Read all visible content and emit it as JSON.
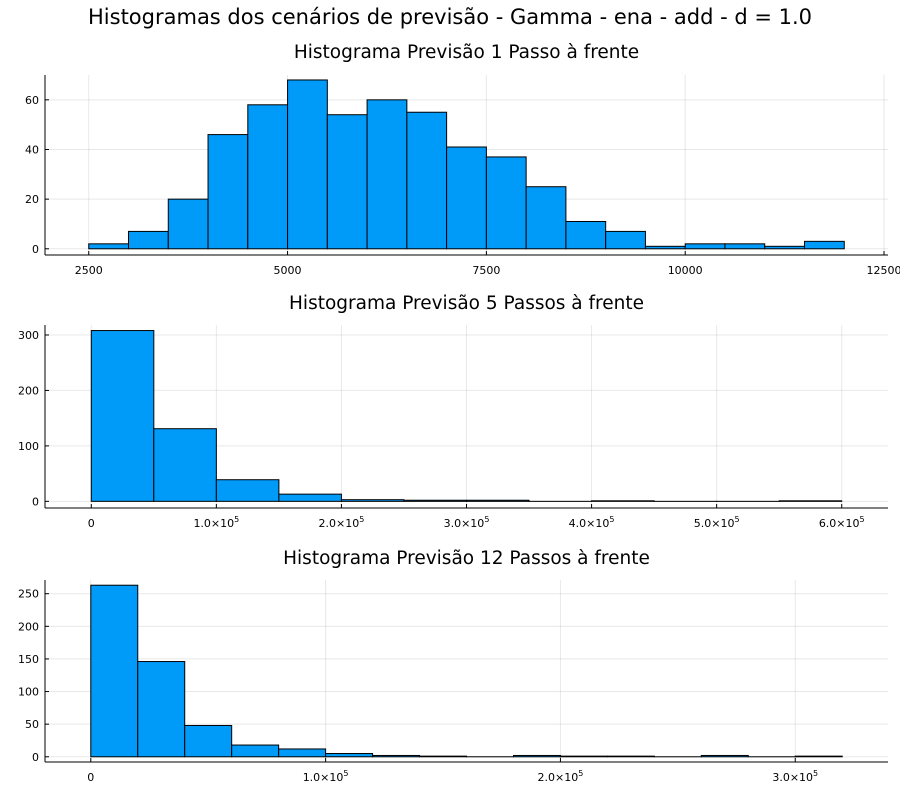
{
  "title": "Histogramas dos cenários de previsão - Gamma - ena - add - d = 1.0",
  "colors": {
    "bar_fill": "#009AF9",
    "bar_stroke": "#000000",
    "grid": "#EDEDED"
  },
  "chart_data": [
    {
      "type": "bar",
      "title": "Histograma Previsão 1 Passo à frente",
      "xlabel": "",
      "ylabel": "",
      "grid": true,
      "legend": "none",
      "bin_edges": [
        2500,
        3000,
        3500,
        4000,
        4500,
        5000,
        5500,
        6000,
        6500,
        7000,
        7500,
        8000,
        8500,
        9000,
        9500,
        10000,
        10500,
        11000,
        11500,
        12000
      ],
      "values": [
        2,
        7,
        20,
        46,
        58,
        68,
        54,
        60,
        55,
        41,
        37,
        25,
        11,
        7,
        1,
        2,
        2,
        1,
        3
      ],
      "xlim": [
        1950,
        12550
      ],
      "ylim": [
        -2.5,
        70
      ],
      "xticks": [
        2500,
        5000,
        7500,
        10000,
        12500
      ],
      "xtick_labels": [
        "2500",
        "5000",
        "7500",
        "10000",
        "12500"
      ],
      "yticks": [
        0,
        20,
        40,
        60
      ],
      "ytick_labels": [
        "0",
        "20",
        "40",
        "60"
      ]
    },
    {
      "type": "bar",
      "title": "Histograma Previsão 5 Passos à frente",
      "xlabel": "",
      "ylabel": "",
      "grid": true,
      "legend": "none",
      "bin_edges": [
        0,
        50000,
        100000,
        150000,
        200000,
        250000,
        300000,
        350000,
        400000,
        450000,
        500000,
        550000,
        600000
      ],
      "values": [
        308,
        131,
        39,
        13,
        3,
        2,
        2,
        0,
        1,
        0,
        0,
        1
      ],
      "xlim": [
        -37000,
        637000
      ],
      "ylim": [
        -12,
        318
      ],
      "xticks": [
        0,
        100000,
        200000,
        300000,
        400000,
        500000,
        600000
      ],
      "xtick_labels": [
        "0",
        "1.0×10",
        "2.0×10",
        "3.0×10",
        "4.0×10",
        "5.0×10",
        "6.0×10"
      ],
      "xtick_exponent": "5",
      "yticks": [
        0,
        100,
        200,
        300
      ],
      "ytick_labels": [
        "0",
        "100",
        "200",
        "300"
      ]
    },
    {
      "type": "bar",
      "title": "Histograma Previsão 12 Passos à frente",
      "xlabel": "",
      "ylabel": "",
      "grid": true,
      "legend": "none",
      "bin_edges": [
        0,
        20000,
        40000,
        60000,
        80000,
        100000,
        120000,
        140000,
        160000,
        180000,
        200000,
        220000,
        240000,
        260000,
        280000,
        300000,
        320000
      ],
      "values": [
        263,
        146,
        48,
        18,
        12,
        5,
        2,
        1,
        0,
        2,
        1,
        1,
        0,
        2,
        0,
        1
      ],
      "xlim": [
        -19500,
        339500
      ],
      "ylim": [
        -8,
        271
      ],
      "xticks": [
        0,
        100000,
        200000,
        300000
      ],
      "xtick_labels": [
        "0",
        "1.0×10",
        "2.0×10",
        "3.0×10"
      ],
      "xtick_exponent": "5",
      "yticks": [
        0,
        50,
        100,
        150,
        200,
        250
      ],
      "ytick_labels": [
        "0",
        "50",
        "100",
        "150",
        "200",
        "250"
      ]
    }
  ]
}
